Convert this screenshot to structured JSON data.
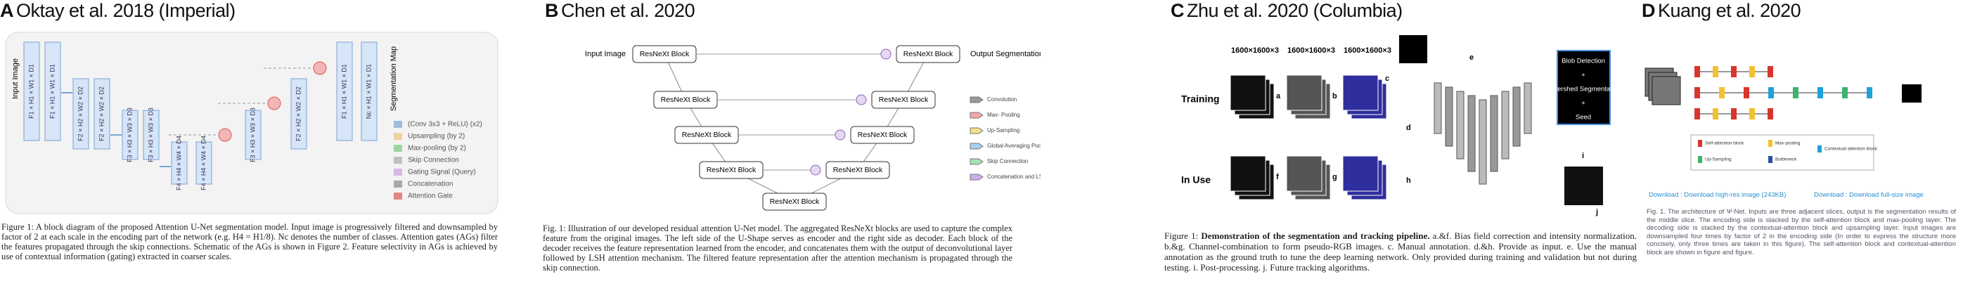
{
  "panels": [
    {
      "letter": "A",
      "title": "Oktay et al. 2018 (Imperial)",
      "diagram": {
        "input_label": "Input Image",
        "output_label": "Segmentation Map",
        "feature_labels": [
          "F1 × H1 × W1 × D1",
          "F1 × H1 × W1 × D1",
          "F2 × H2 × W2 × D2",
          "F2 × H2 × W2 × D2",
          "F3 × H3 × W3 × D3",
          "F3 × H3 × W3 × D3",
          "F4 × H4 × W4 × D4",
          "F4 × H4 × W4 × D4",
          "F3 × H3 × W3 × D3",
          "F2 × H2 × W2 × D2",
          "F1 × H1 × W1 × D1",
          "Nc × H1 × W1 × D1"
        ],
        "legend": [
          "(Conv 3x3 + ReLU) (x2)",
          "Upsampling (by 2)",
          "Max-pooling (by 2)",
          "Skip Connection",
          "Gating Signal (Query)",
          "Concatenation",
          "Attention Gate"
        ]
      },
      "caption": "Figure 1: A block diagram of the proposed Attention U-Net segmentation model. Input image is progressively filtered and downsampled by factor of 2 at each scale in the encoding part of the network (e.g. H4 = H1/8). Nc denotes the number of classes. Attention gates (AGs) filter the features propagated through the skip connections. Schematic of the AGs is shown in Figure 2. Feature selectivity in AGs is achieved by use of contextual information (gating) extracted in coarser scales."
    },
    {
      "letter": "B",
      "title": "Chen et al. 2020",
      "diagram": {
        "input_label": "Input Image",
        "output_label": "Output Segmentation",
        "nodes": [
          "ResNeXt Block",
          "ResNeXt Block",
          "ResNeXt Block",
          "ResNeXt Block",
          "ResNeXt Block",
          "ResNeXt Block",
          "ResNeXt Block",
          "ResNeXt Block",
          "ResNeXt Block"
        ],
        "legend": [
          "Convolution",
          "Max- Pooling",
          "Up-Sampling",
          "Global Averaging Pooling",
          "Skip Connection",
          "Concatenation and LSH Attention"
        ]
      },
      "caption": "Fig. 1: Illustration of our developed residual attention U-Net model. The aggregated ResNeXt blocks are used to capture the complex feature from the original images. The left side of the U-Shape serves as encoder and the right side as decoder. Each block of the decoder receives the feature representation learned from the encoder, and concatenates them with the output of deconvolutional layer followed by LSH attention mechanism. The filtered feature representation after the attention mechanism is propagated through the skip connection."
    },
    {
      "letter": "C",
      "title": "Zhu et al. 2020 (Columbia)",
      "diagram": {
        "rows": [
          "Training",
          "In Use"
        ],
        "dims": [
          "1600×1600×3",
          "1600×1600×3",
          "1600×1600×3"
        ],
        "steps": [
          "a",
          "b",
          "c",
          "d",
          "e",
          "f",
          "g",
          "h",
          "i",
          "j"
        ],
        "post": [
          "Blob Detection",
          "+",
          "Watershed Segmentation",
          "+",
          "Seed"
        ]
      },
      "caption_label": "Figure 1:",
      "caption_bold": "Demonstration of the segmentation and tracking pipeline.",
      "caption": "a.&f. Bias field correction and intensity normalization. b.&g. Channel-combination to form pseudo-RGB images. c. Manual annotation. d.&h. Provide as input. e. Use the manual annotation as the ground truth to tune the deep learning network. Only provided during training and validation but not during testing. i. Post-processing. j. Future tracking algorithms."
    },
    {
      "letter": "D",
      "title": "Kuang et al. 2020",
      "diagram": {
        "legend": [
          "Self-attention block",
          "Max-pooling",
          "Contextual attention block",
          "Up-Sampling",
          "Bottleneck"
        ]
      },
      "links": [
        "Download : Download high-res image (243KB)",
        "Download : Download full-size image"
      ],
      "caption": "Fig. 1. The architecture of Ψ-Net. Inputs are three adjacent slices, output is the segmentation results of the middle slice. The encoding side is stacked by the self-attention block and max-pooling layer. The decoding side is stacked by the contextual-attention block and upsampling layer. Input images are downsampled four times by factor of 2 in the encoding side (In order to express the structure more concisely, only three times are taken in this figure). The self-attention block and contextual-attention block are shown in figure and figure."
    }
  ]
}
